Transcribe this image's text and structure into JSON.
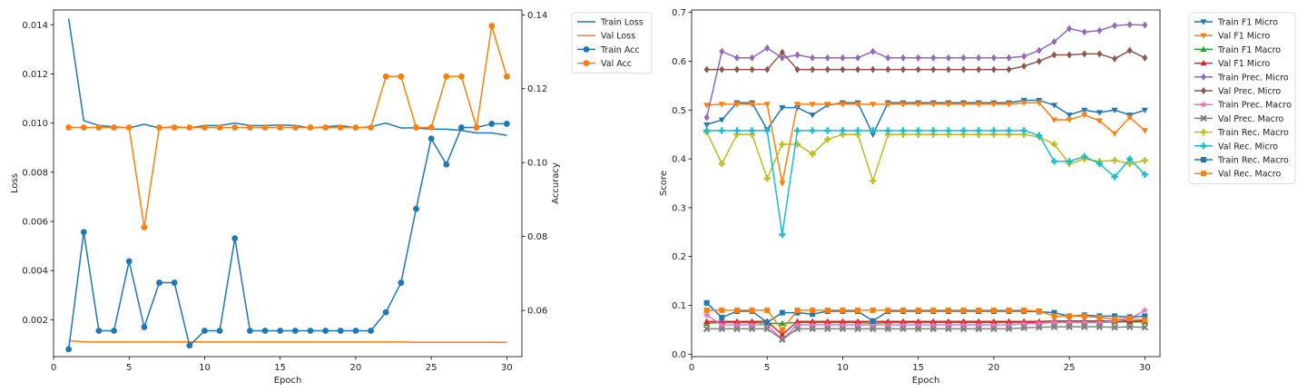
{
  "chart_data": [
    {
      "type": "line",
      "xlabel": "Epoch",
      "ylabel": "Loss",
      "y2label": "Accuracy",
      "xlim": [
        0,
        31
      ],
      "ylim": [
        0.0005,
        0.0146
      ],
      "y2lim": [
        0.0475,
        0.1413
      ],
      "xticks": [
        "0",
        "5",
        "10",
        "15",
        "20",
        "25",
        "30"
      ],
      "yticks": [
        "0.002",
        "0.004",
        "0.006",
        "0.008",
        "0.010",
        "0.012",
        "0.014"
      ],
      "y2ticks": [
        "0.06",
        "0.08",
        "0.10",
        "0.12",
        "0.14"
      ],
      "legend_position": "outside top-right",
      "x": [
        1,
        2,
        3,
        4,
        5,
        6,
        7,
        8,
        9,
        10,
        11,
        12,
        13,
        14,
        15,
        16,
        17,
        18,
        19,
        20,
        21,
        22,
        23,
        24,
        25,
        26,
        27,
        28,
        29,
        30
      ],
      "series": [
        {
          "name": "Train Loss",
          "axis": "left",
          "color": "#1f77b4",
          "marker": "none",
          "values": [
            0.01425,
            0.0101,
            0.0099,
            0.00985,
            0.0098,
            0.00995,
            0.0098,
            0.00985,
            0.0098,
            0.0099,
            0.0099,
            0.01,
            0.0099,
            0.0099,
            0.00992,
            0.0099,
            0.0098,
            0.00985,
            0.0099,
            0.0098,
            0.00985,
            0.01,
            0.0098,
            0.0098,
            0.00975,
            0.00975,
            0.0097,
            0.0096,
            0.0096,
            0.0095
          ]
        },
        {
          "name": "Val Loss",
          "axis": "left",
          "color": "#ff7f0e",
          "marker": "none",
          "values": [
            0.00115,
            0.0011,
            0.0011,
            0.0011,
            0.0011,
            0.0011,
            0.0011,
            0.0011,
            0.0011,
            0.0011,
            0.0011,
            0.0011,
            0.0011,
            0.0011,
            0.0011,
            0.0011,
            0.0011,
            0.0011,
            0.0011,
            0.0011,
            0.0011,
            0.0011,
            0.0011,
            0.00108,
            0.00108,
            0.00108,
            0.00108,
            0.00108,
            0.00108,
            0.00108
          ]
        },
        {
          "name": "Train Acc",
          "axis": "right",
          "color": "#1f77b4",
          "marker": "circle",
          "values": [
            0.0495,
            0.0812,
            0.0545,
            0.0545,
            0.0733,
            0.0555,
            0.0675,
            0.0675,
            0.0505,
            0.0545,
            0.0545,
            0.0795,
            0.0545,
            0.0545,
            0.0545,
            0.0545,
            0.0545,
            0.0545,
            0.0545,
            0.0545,
            0.0545,
            0.0595,
            0.0675,
            0.0875,
            0.1065,
            0.0995,
            0.1095,
            0.1095,
            0.1105,
            0.1105
          ]
        },
        {
          "name": "Val Acc",
          "axis": "right",
          "color": "#ff7f0e",
          "marker": "circle",
          "values": [
            0.1095,
            0.1095,
            0.1095,
            0.1095,
            0.1095,
            0.0825,
            0.1095,
            0.1095,
            0.1095,
            0.1095,
            0.1095,
            0.1095,
            0.1095,
            0.1095,
            0.1095,
            0.1095,
            0.1095,
            0.1095,
            0.1095,
            0.1095,
            0.1095,
            0.1233,
            0.1233,
            0.1095,
            0.1095,
            0.1233,
            0.1233,
            0.1095,
            0.137,
            0.1233
          ]
        }
      ]
    },
    {
      "type": "line",
      "xlabel": "Epoch",
      "ylabel": "Score",
      "xlim": [
        0,
        31
      ],
      "ylim": [
        -0.005,
        0.705
      ],
      "xticks": [
        "0",
        "5",
        "10",
        "15",
        "20",
        "25",
        "30"
      ],
      "yticks": [
        "0.0",
        "0.1",
        "0.2",
        "0.3",
        "0.4",
        "0.5",
        "0.6",
        "0.7"
      ],
      "legend_position": "outside top-right",
      "x": [
        1,
        2,
        3,
        4,
        5,
        6,
        7,
        8,
        9,
        10,
        11,
        12,
        13,
        14,
        15,
        16,
        17,
        18,
        19,
        20,
        21,
        22,
        23,
        24,
        25,
        26,
        27,
        28,
        29,
        30
      ],
      "series": [
        {
          "name": "Train F1 Micro",
          "color": "#1f77b4",
          "marker": "tri-down",
          "values": [
            0.47,
            0.48,
            0.515,
            0.515,
            0.46,
            0.505,
            0.505,
            0.49,
            0.51,
            0.515,
            0.515,
            0.45,
            0.515,
            0.515,
            0.515,
            0.515,
            0.515,
            0.515,
            0.515,
            0.515,
            0.515,
            0.52,
            0.52,
            0.51,
            0.49,
            0.5,
            0.495,
            0.5,
            0.49,
            0.5
          ]
        },
        {
          "name": "Val F1 Micro",
          "color": "#ff7f0e",
          "marker": "tri-down",
          "values": [
            0.51,
            0.512,
            0.512,
            0.512,
            0.512,
            0.35,
            0.512,
            0.512,
            0.512,
            0.512,
            0.512,
            0.512,
            0.512,
            0.512,
            0.512,
            0.512,
            0.512,
            0.512,
            0.512,
            0.512,
            0.512,
            0.515,
            0.515,
            0.48,
            0.48,
            0.49,
            0.478,
            0.452,
            0.485,
            0.458
          ]
        },
        {
          "name": "Train F1 Macro",
          "color": "#2ca02c",
          "marker": "tri-up",
          "values": [
            0.063,
            0.065,
            0.065,
            0.065,
            0.063,
            0.063,
            0.065,
            0.065,
            0.065,
            0.065,
            0.065,
            0.063,
            0.065,
            0.065,
            0.065,
            0.065,
            0.065,
            0.065,
            0.065,
            0.065,
            0.065,
            0.065,
            0.065,
            0.065,
            0.065,
            0.065,
            0.065,
            0.066,
            0.066,
            0.066
          ]
        },
        {
          "name": "Val F1 Micro",
          "color": "#d62728",
          "marker": "tri-up",
          "values": [
            0.067,
            0.067,
            0.067,
            0.067,
            0.067,
            0.04,
            0.067,
            0.067,
            0.067,
            0.067,
            0.067,
            0.067,
            0.067,
            0.067,
            0.067,
            0.067,
            0.067,
            0.067,
            0.067,
            0.067,
            0.067,
            0.067,
            0.067,
            0.068,
            0.068,
            0.068,
            0.068,
            0.068,
            0.068,
            0.068
          ]
        },
        {
          "name": "Train Prec. Micro",
          "color": "#9467bd",
          "marker": "diamond",
          "values": [
            0.485,
            0.62,
            0.607,
            0.607,
            0.627,
            0.607,
            0.613,
            0.607,
            0.607,
            0.607,
            0.607,
            0.62,
            0.607,
            0.607,
            0.607,
            0.607,
            0.607,
            0.607,
            0.607,
            0.607,
            0.607,
            0.61,
            0.622,
            0.64,
            0.667,
            0.66,
            0.663,
            0.673,
            0.675,
            0.674
          ]
        },
        {
          "name": "Val Prec. Micro",
          "color": "#8c564b",
          "marker": "diamond",
          "values": [
            0.583,
            0.583,
            0.583,
            0.583,
            0.583,
            0.618,
            0.583,
            0.583,
            0.583,
            0.583,
            0.583,
            0.583,
            0.583,
            0.583,
            0.583,
            0.583,
            0.583,
            0.583,
            0.583,
            0.583,
            0.583,
            0.59,
            0.6,
            0.613,
            0.613,
            0.615,
            0.615,
            0.605,
            0.622,
            0.607
          ]
        },
        {
          "name": "Train Prec. Macro",
          "color": "#e377c2",
          "marker": "star",
          "values": [
            0.08,
            0.06,
            0.06,
            0.06,
            0.06,
            0.03,
            0.06,
            0.06,
            0.06,
            0.06,
            0.06,
            0.06,
            0.06,
            0.06,
            0.06,
            0.06,
            0.06,
            0.06,
            0.06,
            0.06,
            0.06,
            0.062,
            0.063,
            0.065,
            0.065,
            0.065,
            0.065,
            0.068,
            0.072,
            0.09
          ]
        },
        {
          "name": "Val Prec. Macro",
          "color": "#7f7f7f",
          "marker": "x",
          "values": [
            0.052,
            0.052,
            0.052,
            0.052,
            0.052,
            0.03,
            0.052,
            0.052,
            0.052,
            0.052,
            0.052,
            0.052,
            0.052,
            0.052,
            0.052,
            0.052,
            0.052,
            0.052,
            0.052,
            0.052,
            0.052,
            0.054,
            0.055,
            0.056,
            0.056,
            0.056,
            0.056,
            0.055,
            0.056,
            0.055
          ]
        },
        {
          "name": "Train Rec. Macro",
          "color": "#bcbd22",
          "marker": "plus",
          "values": [
            0.455,
            0.39,
            0.45,
            0.45,
            0.36,
            0.43,
            0.43,
            0.41,
            0.44,
            0.45,
            0.45,
            0.355,
            0.45,
            0.45,
            0.45,
            0.45,
            0.45,
            0.45,
            0.45,
            0.45,
            0.45,
            0.45,
            0.445,
            0.43,
            0.39,
            0.4,
            0.395,
            0.397,
            0.39,
            0.397
          ]
        },
        {
          "name": "Val Rec. Micro",
          "color": "#17becf",
          "marker": "plus",
          "values": [
            0.458,
            0.458,
            0.458,
            0.458,
            0.458,
            0.245,
            0.458,
            0.458,
            0.458,
            0.458,
            0.458,
            0.458,
            0.458,
            0.458,
            0.458,
            0.458,
            0.458,
            0.458,
            0.458,
            0.458,
            0.458,
            0.458,
            0.448,
            0.395,
            0.395,
            0.405,
            0.39,
            0.363,
            0.4,
            0.368
          ]
        },
        {
          "name": "Train Rec. Macro",
          "color": "#1f77b4",
          "marker": "square",
          "values": [
            0.105,
            0.075,
            0.088,
            0.088,
            0.065,
            0.085,
            0.085,
            0.082,
            0.088,
            0.088,
            0.088,
            0.068,
            0.088,
            0.088,
            0.088,
            0.088,
            0.088,
            0.088,
            0.088,
            0.088,
            0.088,
            0.088,
            0.087,
            0.085,
            0.078,
            0.08,
            0.078,
            0.078,
            0.076,
            0.078
          ]
        },
        {
          "name": "Val Rec. Macro",
          "color": "#ff7f0e",
          "marker": "square",
          "values": [
            0.09,
            0.09,
            0.09,
            0.09,
            0.09,
            0.05,
            0.09,
            0.09,
            0.09,
            0.09,
            0.09,
            0.09,
            0.09,
            0.09,
            0.09,
            0.09,
            0.09,
            0.09,
            0.09,
            0.09,
            0.09,
            0.09,
            0.088,
            0.078,
            0.078,
            0.078,
            0.075,
            0.072,
            0.073,
            0.07
          ]
        }
      ]
    }
  ]
}
